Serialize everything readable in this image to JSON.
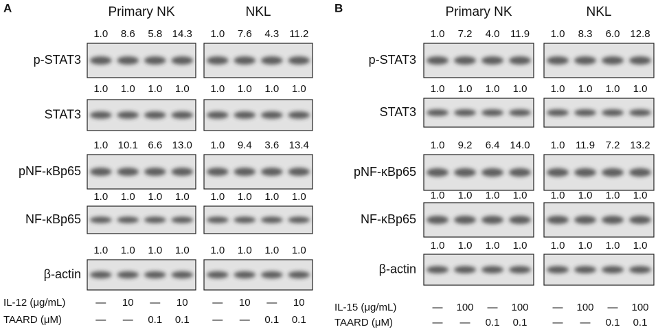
{
  "panels": [
    {
      "label": "A",
      "groups": [
        "Primary NK",
        "NKL"
      ],
      "rows": [
        {
          "label": "p-STAT3",
          "values": [
            [
              "1.0",
              "8.6",
              "5.8",
              "14.3"
            ],
            [
              "1.0",
              "7.6",
              "4.3",
              "11.2"
            ]
          ]
        },
        {
          "label": "STAT3",
          "values": [
            [
              "1.0",
              "1.0",
              "1.0",
              "1.0"
            ],
            [
              "1.0",
              "1.0",
              "1.0",
              "1.0"
            ]
          ]
        },
        {
          "label": "pNF-κBp65",
          "values": [
            [
              "1.0",
              "10.1",
              "6.6",
              "13.0"
            ],
            [
              "1.0",
              "9.4",
              "3.6",
              "13.4"
            ]
          ]
        },
        {
          "label": "NF-κBp65",
          "values": [
            [
              "1.0",
              "1.0",
              "1.0",
              "1.0"
            ],
            [
              "1.0",
              "1.0",
              "1.0",
              "1.0"
            ]
          ]
        },
        {
          "label": "β-actin",
          "values": [
            [
              "1.0",
              "1.0",
              "1.0",
              "1.0"
            ],
            [
              "1.0",
              "1.0",
              "1.0",
              "1.0"
            ]
          ]
        }
      ],
      "treatments": [
        {
          "label": "IL-12 (μg/mL)",
          "values": [
            "—",
            "10",
            "—",
            "10",
            "—",
            "10",
            "—",
            "10"
          ]
        },
        {
          "label": "TAARD (μM)",
          "values": [
            "—",
            "—",
            "0.1",
            "0.1",
            "—",
            "—",
            "0.1",
            "0.1"
          ]
        }
      ]
    },
    {
      "label": "B",
      "groups": [
        "Primary NK",
        "NKL"
      ],
      "rows": [
        {
          "label": "p-STAT3",
          "values": [
            [
              "1.0",
              "7.2",
              "4.0",
              "11.9"
            ],
            [
              "1.0",
              "8.3",
              "6.0",
              "12.8"
            ]
          ]
        },
        {
          "label": "STAT3",
          "values": [
            [
              "1.0",
              "1.0",
              "1.0",
              "1.0"
            ],
            [
              "1.0",
              "1.0",
              "1.0",
              "1.0"
            ]
          ]
        },
        {
          "label": "pNF-κBp65",
          "values": [
            [
              "1.0",
              "9.2",
              "6.4",
              "14.0"
            ],
            [
              "1.0",
              "11.9",
              "7.2",
              "13.2"
            ]
          ]
        },
        {
          "label": "NF-κBp65",
          "values": [
            [
              "1.0",
              "1.0",
              "1.0",
              "1.0"
            ],
            [
              "1.0",
              "1.0",
              "1.0",
              "1.0"
            ]
          ]
        },
        {
          "label": "β-actin",
          "values": [
            [
              "1.0",
              "1.0",
              "1.0",
              "1.0"
            ],
            [
              "1.0",
              "1.0",
              "1.0",
              "1.0"
            ]
          ]
        }
      ],
      "treatments": [
        {
          "label": "IL-15 (μg/mL)",
          "values": [
            "—",
            "100",
            "—",
            "100",
            "—",
            "100",
            "—",
            "100"
          ]
        },
        {
          "label": "TAARD (μM)",
          "values": [
            "—",
            "—",
            "0.1",
            "0.1",
            "—",
            "—",
            "0.1",
            "0.1"
          ]
        }
      ]
    }
  ]
}
